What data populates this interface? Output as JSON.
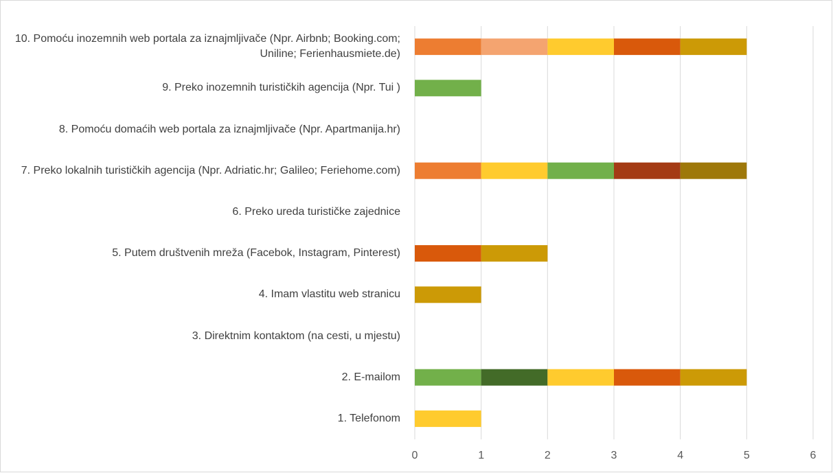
{
  "chart_data": {
    "type": "stacked_bar_horizontal",
    "categories": [
      "1. Telefonom",
      "2. E-mailom",
      "3. Direktnim kontaktom (na cesti, u mjestu)",
      "4. Imam vlastitu web stranicu",
      "5. Putem društvenih mreža (Facebok, Instagram, Pinterest)",
      "6. Preko ureda turističke zajednice",
      "7. Preko lokalnih turističkih agencija (Npr. Adriatic.hr; Galileo; Feriehome.com)",
      "8. Pomoću domaćih web portala za iznajmljivače (Npr. Apartmanija.hr)",
      "9. Preko inozemnih turističkih agencija (Npr. Tui )",
      "10. Pomoću inozemnih web portala za iznajmljivače (Npr. Airbnb; Booking.com; Uniline; Ferienhausmiete.de)"
    ],
    "series": [
      {
        "values": [
          1,
          1,
          0,
          1,
          1,
          0,
          1,
          0,
          1,
          1
        ],
        "colors": [
          "#FFCB2E",
          "#72B04A",
          "#D9D9D9",
          "#CC9A06",
          "#D9590B",
          "#D9D9D9",
          "#ED7D31",
          "#D9D9D9",
          "#72B04A",
          "#ED7D31"
        ]
      },
      {
        "values": [
          null,
          1,
          null,
          null,
          1,
          null,
          1,
          null,
          null,
          1
        ],
        "colors": [
          null,
          "#436B28",
          null,
          null,
          "#CC9A06",
          null,
          "#FFCB2E",
          null,
          null,
          "#F4A470"
        ]
      },
      {
        "values": [
          null,
          1,
          null,
          null,
          null,
          null,
          1,
          null,
          null,
          1
        ],
        "colors": [
          null,
          "#FFCB2E",
          null,
          null,
          null,
          null,
          "#72B04A",
          null,
          null,
          "#FFCB2E"
        ]
      },
      {
        "values": [
          null,
          1,
          null,
          null,
          null,
          null,
          1,
          null,
          null,
          1
        ],
        "colors": [
          null,
          "#D9590B",
          null,
          null,
          null,
          null,
          "#A43B14",
          null,
          null,
          "#D9590B"
        ]
      },
      {
        "values": [
          null,
          1,
          null,
          null,
          null,
          null,
          1,
          null,
          null,
          1
        ],
        "colors": [
          null,
          "#CC9A06",
          null,
          null,
          null,
          null,
          "#9E780A",
          null,
          null,
          "#CC9A06"
        ]
      }
    ],
    "xlim": [
      0,
      6
    ],
    "xticks": [
      0,
      1,
      2,
      3,
      4,
      5,
      6
    ],
    "grid": true
  }
}
